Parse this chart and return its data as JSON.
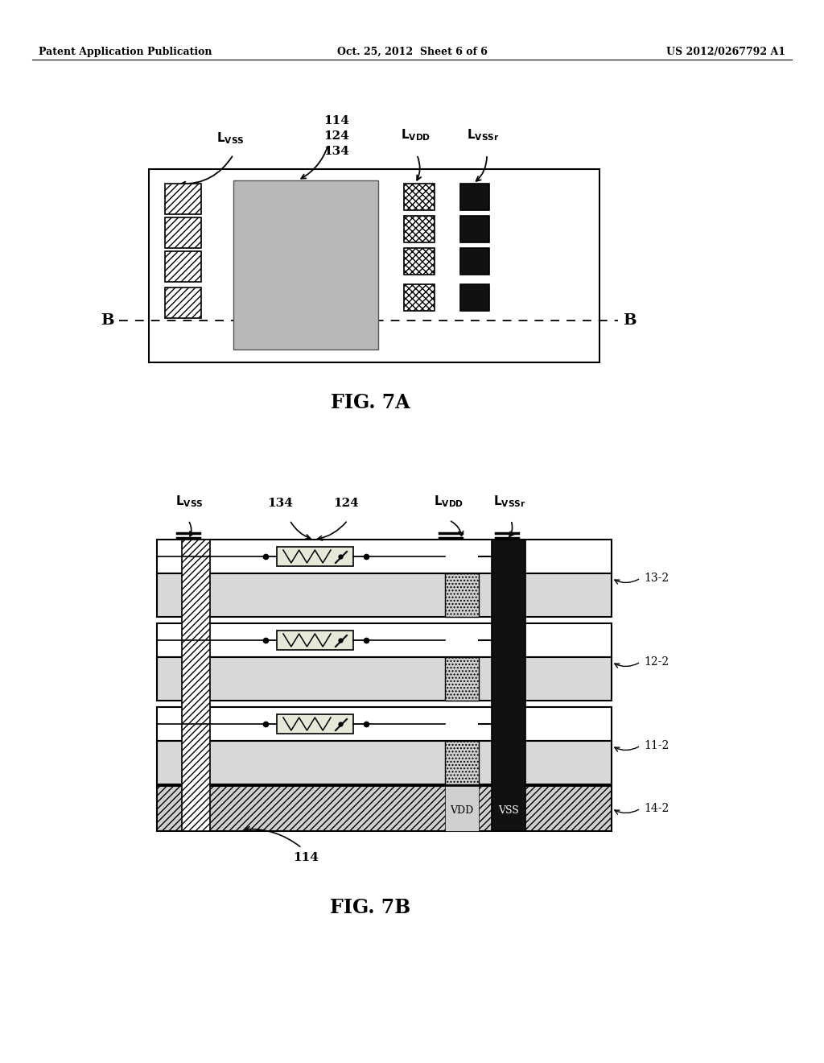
{
  "header_left": "Patent Application Publication",
  "header_mid": "Oct. 25, 2012  Sheet 6 of 6",
  "header_right": "US 2012/0267792 A1",
  "fig7a_title": "FIG. 7A",
  "fig7b_title": "FIG. 7B",
  "bg": "#ffffff"
}
